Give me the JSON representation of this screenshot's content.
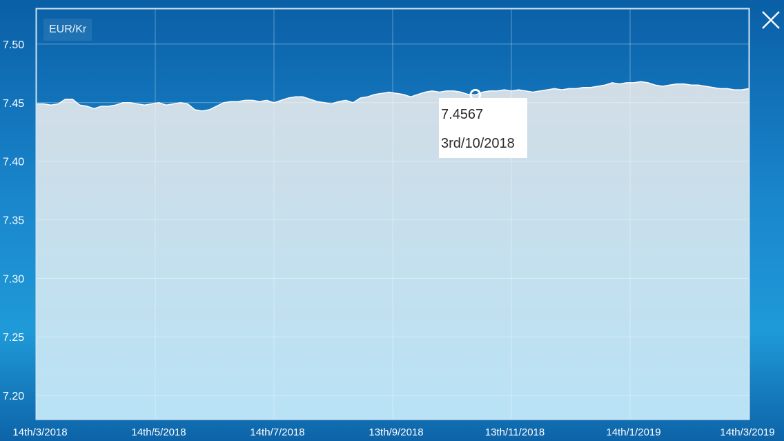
{
  "pair_label": "EUR/Kr",
  "close_icon": "close-icon",
  "colors": {
    "background_top": "#0a5fa6",
    "background_mid": "#1f9ad8",
    "plot_border": "#cfe3f1",
    "area_fill_top": "#d2dde6",
    "area_fill_bottom": "#b8e2f5",
    "line": "#ffffff"
  },
  "tooltip": {
    "value": "7.4567",
    "date": "3rd/10/2018"
  },
  "chart_data": {
    "type": "area",
    "title": "",
    "xlabel": "",
    "ylabel": "",
    "ylim": [
      7.18,
      7.53
    ],
    "y_ticks": [
      "7.20",
      "7.25",
      "7.30",
      "7.35",
      "7.40",
      "7.45",
      "7.50"
    ],
    "y_tick_values": [
      7.2,
      7.25,
      7.3,
      7.35,
      7.4,
      7.45,
      7.5
    ],
    "x_tick_labels": [
      "14th/3/2018",
      "14th/5/2018",
      "14th/7/2018",
      "13th/9/2018",
      "13th/11/2018",
      "14th/1/2019",
      "14th/3/2019"
    ],
    "x_range": [
      "14th/3/2018",
      "14th/3/2019"
    ],
    "grid": true,
    "highlighted_point": {
      "x": "3rd/10/2018",
      "y": 7.4567
    },
    "series": [
      {
        "values": [
          7.449,
          7.449,
          7.448,
          7.449,
          7.453,
          7.453,
          7.448,
          7.447,
          7.445,
          7.447,
          7.447,
          7.448,
          7.45,
          7.45,
          7.449,
          7.448,
          7.449,
          7.45,
          7.448,
          7.449,
          7.45,
          7.449,
          7.444,
          7.443,
          7.444,
          7.447,
          7.45,
          7.451,
          7.451,
          7.452,
          7.452,
          7.451,
          7.452,
          7.45,
          7.452,
          7.454,
          7.455,
          7.455,
          7.453,
          7.451,
          7.45,
          7.449,
          7.451,
          7.452,
          7.45,
          7.454,
          7.455,
          7.457,
          7.458,
          7.459,
          7.458,
          7.457,
          7.455,
          7.457,
          7.459,
          7.46,
          7.459,
          7.46,
          7.46,
          7.459,
          7.457,
          7.4567,
          7.459,
          7.46,
          7.46,
          7.461,
          7.46,
          7.461,
          7.46,
          7.459,
          7.46,
          7.461,
          7.462,
          7.461,
          7.462,
          7.462,
          7.463,
          7.463,
          7.464,
          7.465,
          7.467,
          7.466,
          7.467,
          7.467,
          7.468,
          7.467,
          7.465,
          7.464,
          7.465,
          7.466,
          7.466,
          7.465,
          7.465,
          7.464,
          7.463,
          7.462,
          7.462,
          7.461,
          7.461,
          7.462
        ]
      }
    ]
  }
}
